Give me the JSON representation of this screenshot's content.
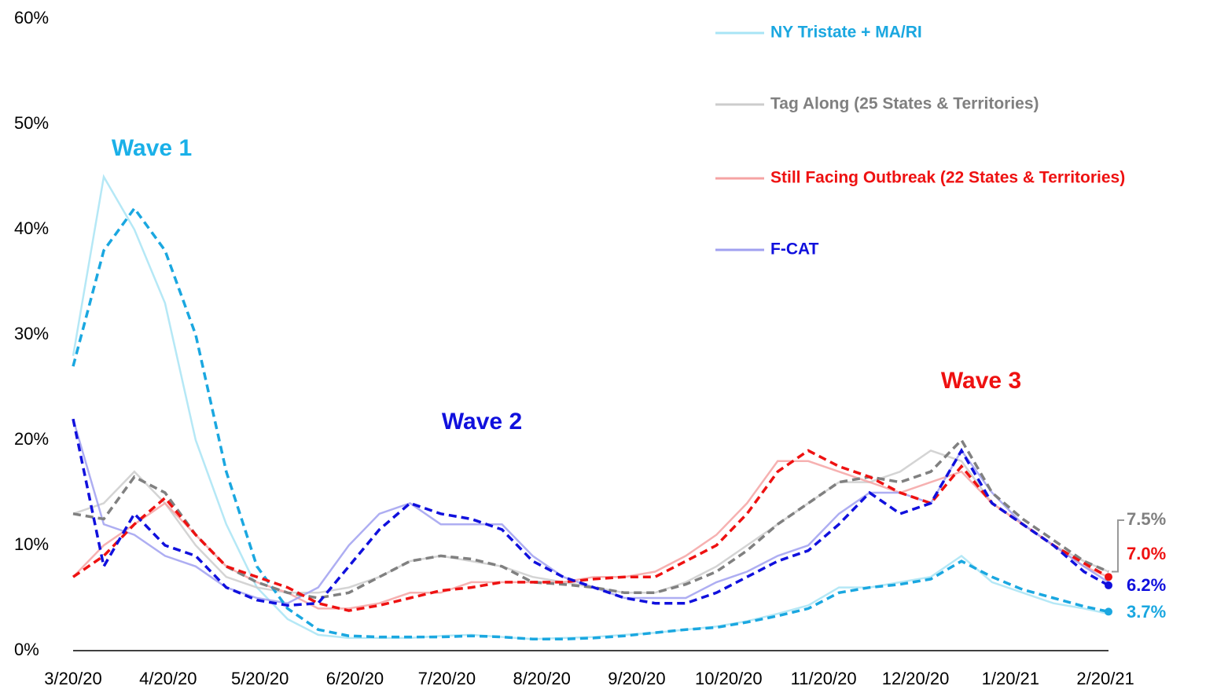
{
  "chart_data": {
    "type": "line",
    "x": [
      "3/20/20",
      "3/30/20",
      "4/9/20",
      "4/19/20",
      "4/29/20",
      "5/9/20",
      "5/19/20",
      "5/29/20",
      "6/8/20",
      "6/18/20",
      "6/28/20",
      "7/8/20",
      "7/18/20",
      "7/28/20",
      "8/7/20",
      "8/17/20",
      "8/27/20",
      "9/6/20",
      "9/16/20",
      "9/26/20",
      "10/6/20",
      "10/16/20",
      "10/26/20",
      "11/5/20",
      "11/15/20",
      "11/25/20",
      "12/5/20",
      "12/15/20",
      "12/25/20",
      "1/4/21",
      "1/14/21",
      "1/24/21",
      "2/3/21",
      "2/13/21",
      "2/21/21"
    ],
    "xlim": [
      "3/20/20",
      "2/21/21"
    ],
    "xticks": [
      "3/20/20",
      "4/20/20",
      "5/20/20",
      "6/20/20",
      "7/20/20",
      "8/20/20",
      "9/20/20",
      "10/20/20",
      "11/20/20",
      "12/20/20",
      "1/20/21",
      "2/20/21"
    ],
    "ylim": [
      0,
      60
    ],
    "yticks": [
      {
        "value": 0,
        "label": "0%"
      },
      {
        "value": 10,
        "label": "10%"
      },
      {
        "value": 20,
        "label": "20%"
      },
      {
        "value": 30,
        "label": "30%"
      },
      {
        "value": 40,
        "label": "40%"
      },
      {
        "value": 50,
        "label": "50%"
      },
      {
        "value": 60,
        "label": "60%"
      }
    ],
    "grid": false,
    "series": [
      {
        "name": "NY Tristate + MA/RI",
        "color": "#a8e4f5",
        "ma_color": "#1aa7e0",
        "end_label": "3.7%",
        "values": [
          28,
          45,
          40,
          33,
          20,
          12,
          6,
          3,
          1.5,
          1.2,
          1.2,
          1.2,
          1.4,
          1.5,
          1.3,
          1.1,
          1.2,
          1.3,
          1.5,
          1.7,
          2,
          2.3,
          2.8,
          3.5,
          4.3,
          6,
          6,
          6.5,
          7,
          9,
          6.5,
          5.5,
          4.5,
          4,
          3.5
        ],
        "ma_values": [
          27,
          38,
          42,
          38,
          30,
          17,
          8,
          4,
          2,
          1.4,
          1.3,
          1.3,
          1.3,
          1.4,
          1.3,
          1.1,
          1.1,
          1.2,
          1.4,
          1.7,
          2,
          2.2,
          2.7,
          3.3,
          4,
          5.5,
          6,
          6.3,
          6.8,
          8.5,
          7,
          5.8,
          5,
          4.2,
          3.7
        ]
      },
      {
        "name": "Tag Along (25 States & Territories)",
        "color": "#cccccc",
        "ma_color": "#808080",
        "end_label": "7.5%",
        "values": [
          13,
          14,
          17,
          14,
          10,
          7,
          6,
          5.5,
          5.5,
          6,
          7,
          8.5,
          9,
          8.5,
          8,
          7,
          6.5,
          6,
          5.5,
          5.5,
          6.5,
          8,
          10,
          12,
          14,
          16,
          16,
          17,
          19,
          18,
          14,
          12,
          10,
          8.5,
          7.5
        ],
        "ma_values": [
          13,
          12.5,
          16.5,
          15,
          11,
          8,
          6.5,
          5.5,
          5,
          5.5,
          7,
          8.5,
          9,
          8.7,
          8,
          6.5,
          6.3,
          6,
          5.5,
          5.5,
          6.3,
          7.5,
          9.5,
          12,
          14,
          16,
          16.5,
          16,
          17,
          20,
          15,
          12.5,
          10.5,
          8.5,
          7.5
        ]
      },
      {
        "name": "Still Facing Outbreak (22 States & Territories)",
        "color": "#f5a3a3",
        "ma_color": "#ee1111",
        "end_label": "7.0%",
        "values": [
          7,
          10,
          12,
          14,
          11,
          8,
          6.5,
          5.5,
          4,
          4,
          4.5,
          5.5,
          5.5,
          6.5,
          6.5,
          6.5,
          6.5,
          7,
          7,
          7.5,
          9,
          11,
          14,
          18,
          18,
          17,
          16,
          15,
          16,
          17,
          14,
          12,
          10,
          8,
          7
        ],
        "ma_values": [
          7,
          9,
          12,
          14.5,
          11,
          8,
          7,
          6,
          4.5,
          3.8,
          4.3,
          5,
          5.7,
          6,
          6.5,
          6.5,
          6.5,
          6.8,
          7,
          7,
          8.5,
          10,
          13,
          17,
          19,
          17.5,
          16.5,
          15,
          14,
          17.5,
          14,
          12,
          10,
          8.3,
          7
        ]
      },
      {
        "name": "F-CAT",
        "color": "#a0a0f0",
        "ma_color": "#1010dd",
        "end_label": "6.2%",
        "values": [
          22,
          12,
          11,
          9,
          8,
          6,
          5,
          4.5,
          6,
          10,
          13,
          14,
          12,
          12,
          12,
          9,
          7,
          6,
          5,
          5,
          5,
          6.5,
          7.5,
          9,
          10,
          13,
          15,
          15,
          14,
          19,
          15,
          12,
          10,
          8,
          6.5
        ],
        "ma_values": [
          22,
          8,
          13,
          10,
          9,
          6,
          4.8,
          4.3,
          4.5,
          8,
          11.5,
          14,
          13,
          12.5,
          11.5,
          8.5,
          7,
          6,
          5,
          4.5,
          4.5,
          5.5,
          7,
          8.5,
          9.5,
          12,
          15,
          13,
          14,
          19,
          14,
          12,
          10,
          7.5,
          6.2
        ]
      }
    ],
    "annotations": [
      {
        "text": "Wave 1",
        "color": "#1ab0e8"
      },
      {
        "text": "Wave 2",
        "color": "#1010dd"
      },
      {
        "text": "Wave 3",
        "color": "#ee1111"
      }
    ]
  }
}
